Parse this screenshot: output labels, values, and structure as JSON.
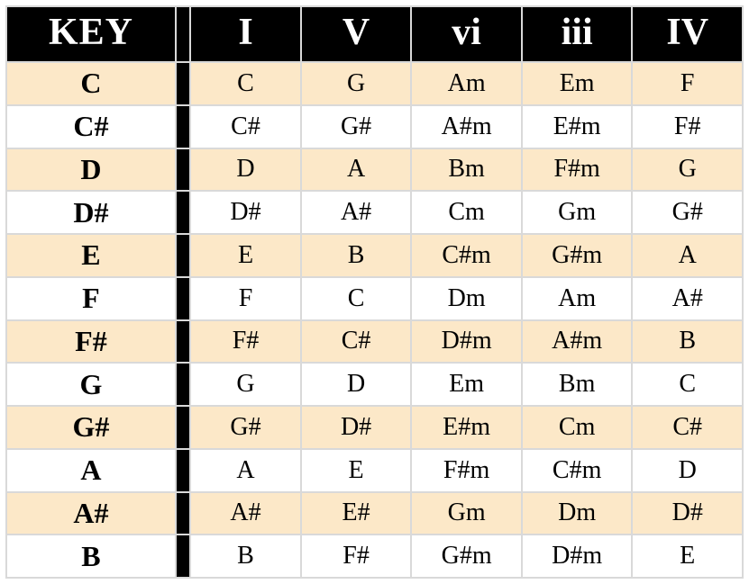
{
  "table": {
    "type": "table",
    "background_color": "#ffffff",
    "header_bg": "#000000",
    "header_fg": "#ffffff",
    "row_alt_bg": "#fce8c8",
    "row_bg": "#ffffff",
    "border_color": "#d9d9d9",
    "gap_color": "#000000",
    "header_font_size_pt": 32,
    "key_font_size_pt": 24,
    "cell_font_size_pt": 21,
    "font_family": "Georgia",
    "columns": [
      "KEY",
      "I",
      "V",
      "vi",
      "iii",
      "IV"
    ],
    "rows": [
      {
        "key": "C",
        "I": "C",
        "V": "G",
        "vi": "Am",
        "iii": "Em",
        "IV": "F"
      },
      {
        "key": "C#",
        "I": "C#",
        "V": "G#",
        "vi": "A#m",
        "iii": "E#m",
        "IV": "F#"
      },
      {
        "key": "D",
        "I": "D",
        "V": "A",
        "vi": "Bm",
        "iii": "F#m",
        "IV": "G"
      },
      {
        "key": "D#",
        "I": "D#",
        "V": "A#",
        "vi": "Cm",
        "iii": "Gm",
        "IV": "G#"
      },
      {
        "key": "E",
        "I": "E",
        "V": "B",
        "vi": "C#m",
        "iii": "G#m",
        "IV": "A"
      },
      {
        "key": "F",
        "I": "F",
        "V": "C",
        "vi": "Dm",
        "iii": "Am",
        "IV": "A#"
      },
      {
        "key": "F#",
        "I": "F#",
        "V": "C#",
        "vi": "D#m",
        "iii": "A#m",
        "IV": "B"
      },
      {
        "key": "G",
        "I": "G",
        "V": "D",
        "vi": "Em",
        "iii": "Bm",
        "IV": "C"
      },
      {
        "key": "G#",
        "I": "G#",
        "V": "D#",
        "vi": "E#m",
        "iii": "Cm",
        "IV": "C#"
      },
      {
        "key": "A",
        "I": "A",
        "V": "E",
        "vi": "F#m",
        "iii": "C#m",
        "IV": "D"
      },
      {
        "key": "A#",
        "I": "A#",
        "V": "E#",
        "vi": "Gm",
        "iii": "Dm",
        "IV": "D#"
      },
      {
        "key": "B",
        "I": "B",
        "V": "F#",
        "vi": "G#m",
        "iii": "D#m",
        "IV": "E"
      }
    ]
  }
}
